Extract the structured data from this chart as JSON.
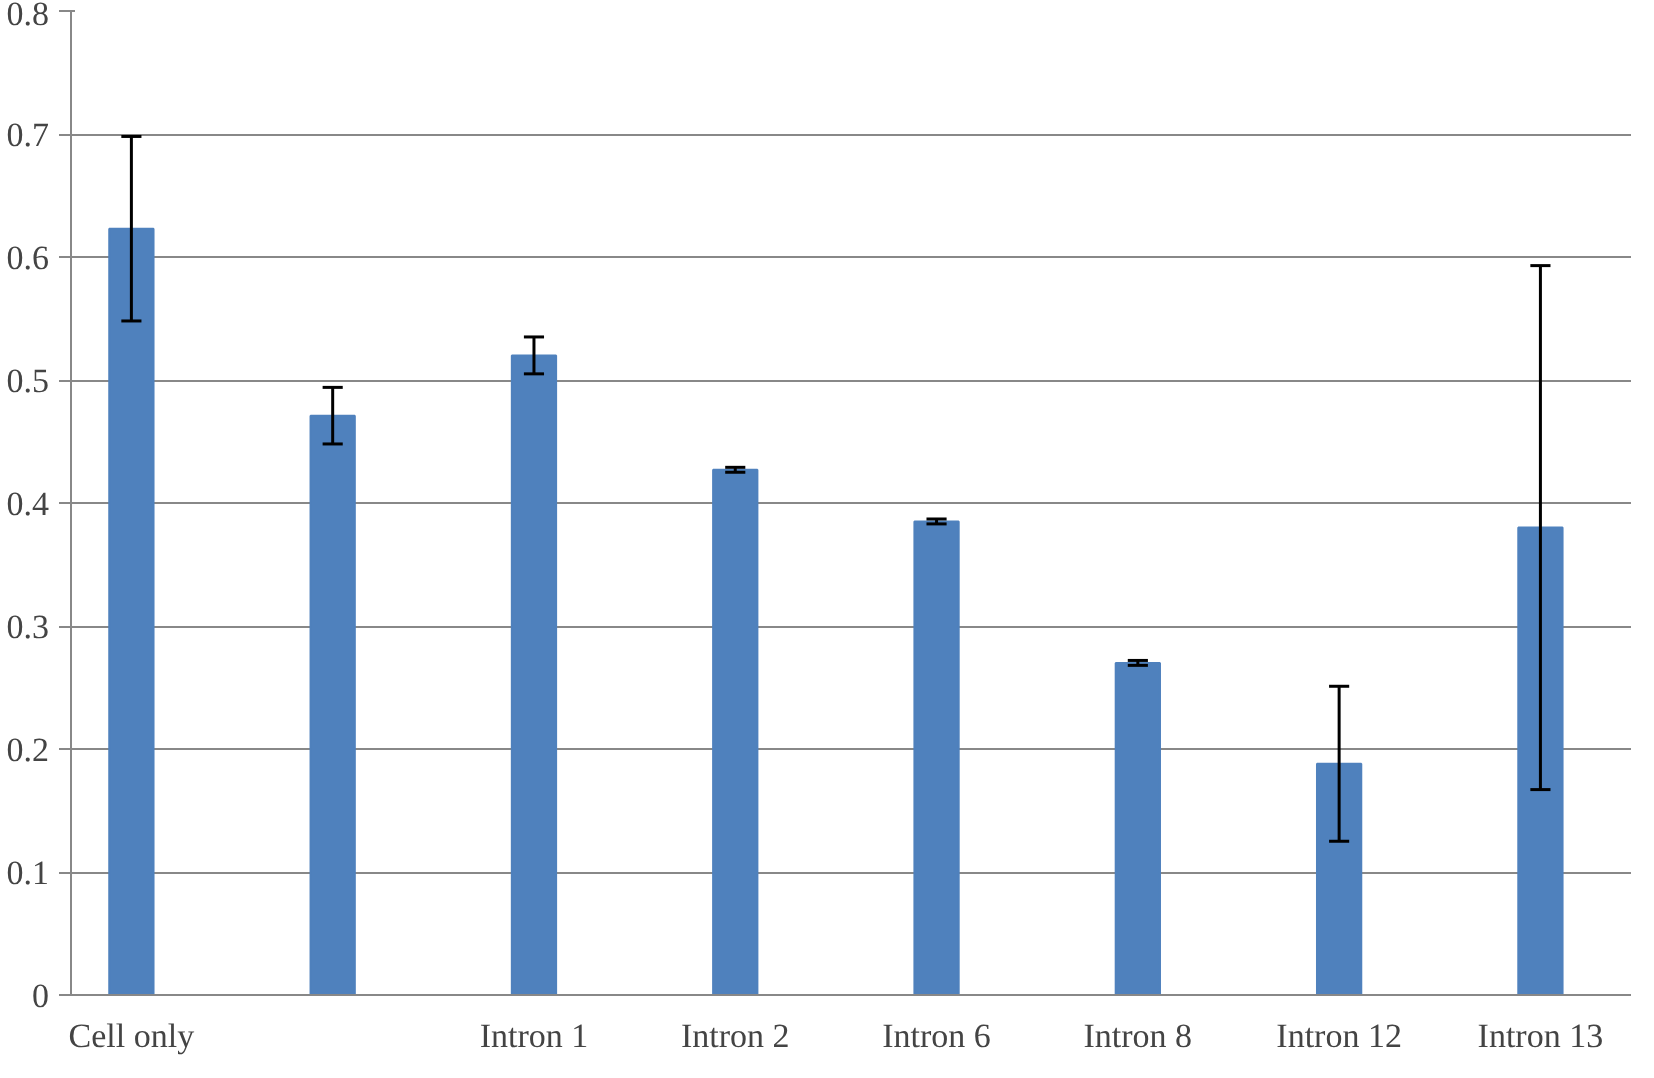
{
  "chart_data": {
    "type": "bar",
    "categories": [
      "Cell only",
      null,
      "Intron 1",
      "Intron 2",
      "Intron 6",
      "Intron 8",
      "Intron 12",
      "Intron 13"
    ],
    "values": [
      0.623,
      0.471,
      0.52,
      0.427,
      0.385,
      0.27,
      0.188,
      0.38
    ],
    "errors": [
      0.075,
      0.023,
      0.015,
      0.002,
      0.002,
      0.002,
      0.063,
      0.213
    ],
    "color": "#4f81bd",
    "ylim": [
      0,
      0.8
    ],
    "yticks": [
      0,
      0.1,
      0.2,
      0.3,
      0.4,
      0.5,
      0.6,
      0.7,
      0.8
    ],
    "grid": "y"
  }
}
